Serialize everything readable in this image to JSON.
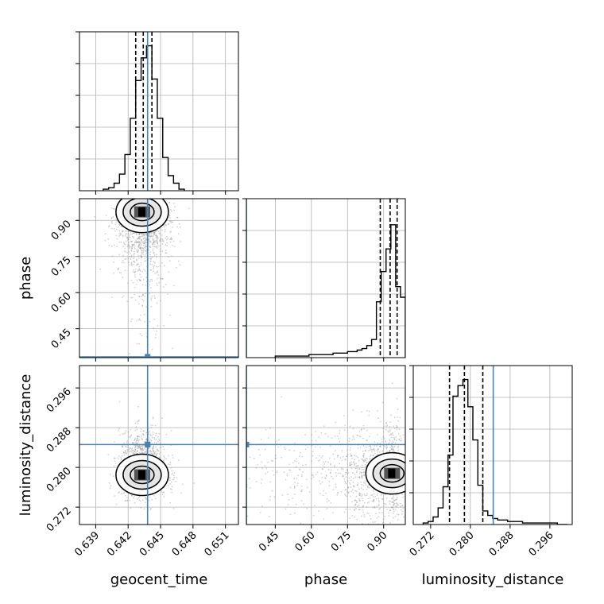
{
  "chart_data": {
    "type": "corner",
    "parameters": [
      "geocent_time",
      "phase",
      "luminosity_distance"
    ],
    "labels": {
      "geocent_time": "geocent_time",
      "phase": "phase",
      "luminosity_distance": "luminosity_distance"
    },
    "ranges": {
      "geocent_time": [
        0.6375,
        0.6522
      ],
      "phase": [
        0.33,
        0.99
      ],
      "luminosity_distance": [
        0.2685,
        0.3005
      ]
    },
    "ticks": {
      "geocent_time": [
        0.639,
        0.642,
        0.645,
        0.648,
        0.651
      ],
      "phase": [
        0.45,
        0.6,
        0.75,
        0.9
      ],
      "luminosity_distance": [
        0.272,
        0.28,
        0.288,
        0.296
      ]
    },
    "tick_labels": {
      "geocent_time": [
        "0.639",
        "0.642",
        "0.645",
        "0.648",
        "0.651"
      ],
      "phase": [
        "0.45",
        "0.60",
        "0.75",
        "0.90"
      ],
      "luminosity_distance": [
        "0.272",
        "0.280",
        "0.288",
        "0.296"
      ]
    },
    "truths": {
      "geocent_time": 0.6438,
      "phase": 0.33,
      "luminosity_distance": 0.2846
    },
    "quantiles": {
      "geocent_time": [
        0.6427,
        0.6434,
        0.6442
      ],
      "phase": [
        0.886,
        0.927,
        0.956
      ],
      "luminosity_distance": [
        0.2758,
        0.2788,
        0.2825
      ]
    },
    "histograms": {
      "geocent_time": {
        "edges": [
          0.6397,
          0.6402,
          0.6407,
          0.6412,
          0.6417,
          0.6422,
          0.6427,
          0.6432,
          0.6437,
          0.6442,
          0.6447,
          0.6452,
          0.6457,
          0.6462,
          0.6467,
          0.6472
        ],
        "counts": [
          0.01,
          0.02,
          0.05,
          0.11,
          0.24,
          0.48,
          0.73,
          0.88,
          0.96,
          0.74,
          0.48,
          0.22,
          0.1,
          0.05,
          0.01
        ]
      },
      "phase": {
        "edges": [
          0.45,
          0.47,
          0.49,
          0.51,
          0.53,
          0.55,
          0.57,
          0.59,
          0.61,
          0.63,
          0.65,
          0.67,
          0.69,
          0.71,
          0.73,
          0.75,
          0.77,
          0.79,
          0.81,
          0.83,
          0.85,
          0.87,
          0.89,
          0.91,
          0.93,
          0.95,
          0.97,
          0.99
        ],
        "counts": [
          0.01,
          0.01,
          0.01,
          0.01,
          0.01,
          0.01,
          0.01,
          0.02,
          0.02,
          0.02,
          0.02,
          0.02,
          0.03,
          0.03,
          0.03,
          0.04,
          0.04,
          0.05,
          0.06,
          0.08,
          0.12,
          0.37,
          0.57,
          0.72,
          0.88,
          0.47,
          0.4
        ]
      },
      "luminosity_distance": {
        "edges": [
          0.2705,
          0.2715,
          0.2725,
          0.2735,
          0.2745,
          0.2755,
          0.2765,
          0.2775,
          0.2785,
          0.2795,
          0.2805,
          0.2815,
          0.2825,
          0.2835,
          0.2845,
          0.2855,
          0.2865,
          0.2875,
          0.2885,
          0.2895,
          0.2905,
          0.2915,
          0.2925,
          0.2935,
          0.2945,
          0.2955,
          0.2965,
          0.2975,
          0.2985,
          0.2995
        ],
        "counts": [
          0.01,
          0.02,
          0.05,
          0.11,
          0.25,
          0.46,
          0.85,
          0.92,
          0.96,
          0.78,
          0.56,
          0.26,
          0.09,
          0.06,
          0.04,
          0.03,
          0.03,
          0.02,
          0.02,
          0.02,
          0.01,
          0.01,
          0.01,
          0.01,
          0.01,
          0.01,
          0.01,
          0.0,
          0.0
        ]
      }
    },
    "samples_2d": [
      {
        "x": "geocent_time",
        "y": "phase",
        "x_mean": 0.6434,
        "y_mean": 0.91,
        "x_sd": 0.0012,
        "y_sd": 0.09,
        "skew": "y-low",
        "count": 1400
      },
      {
        "x": "geocent_time",
        "y": "luminosity_distance",
        "x_mean": 0.6434,
        "y_mean": 0.279,
        "x_sd": 0.0011,
        "y_sd": 0.004,
        "skew": "y-high",
        "count": 1400
      },
      {
        "x": "phase",
        "y": "luminosity_distance",
        "x_mean": 0.925,
        "y_mean": 0.279,
        "x_sd": 0.1,
        "y_sd": 0.005,
        "skew": "x-low",
        "count": 1200
      }
    ],
    "density_peaks": [
      {
        "x": "geocent_time",
        "y": "phase",
        "x_peak": 0.6433,
        "y_peak": 0.935
      },
      {
        "x": "geocent_time",
        "y": "luminosity_distance",
        "x_peak": 0.6433,
        "y_peak": 0.2785
      },
      {
        "x": "phase",
        "y": "luminosity_distance",
        "x_peak": 0.935,
        "y_peak": 0.2788
      }
    ],
    "colors": {
      "truth": "#4682b4",
      "hist": "#000000",
      "points": "#7f7f7f",
      "contour": "#000000",
      "grid": "#b0b0b0"
    },
    "grid": true
  }
}
